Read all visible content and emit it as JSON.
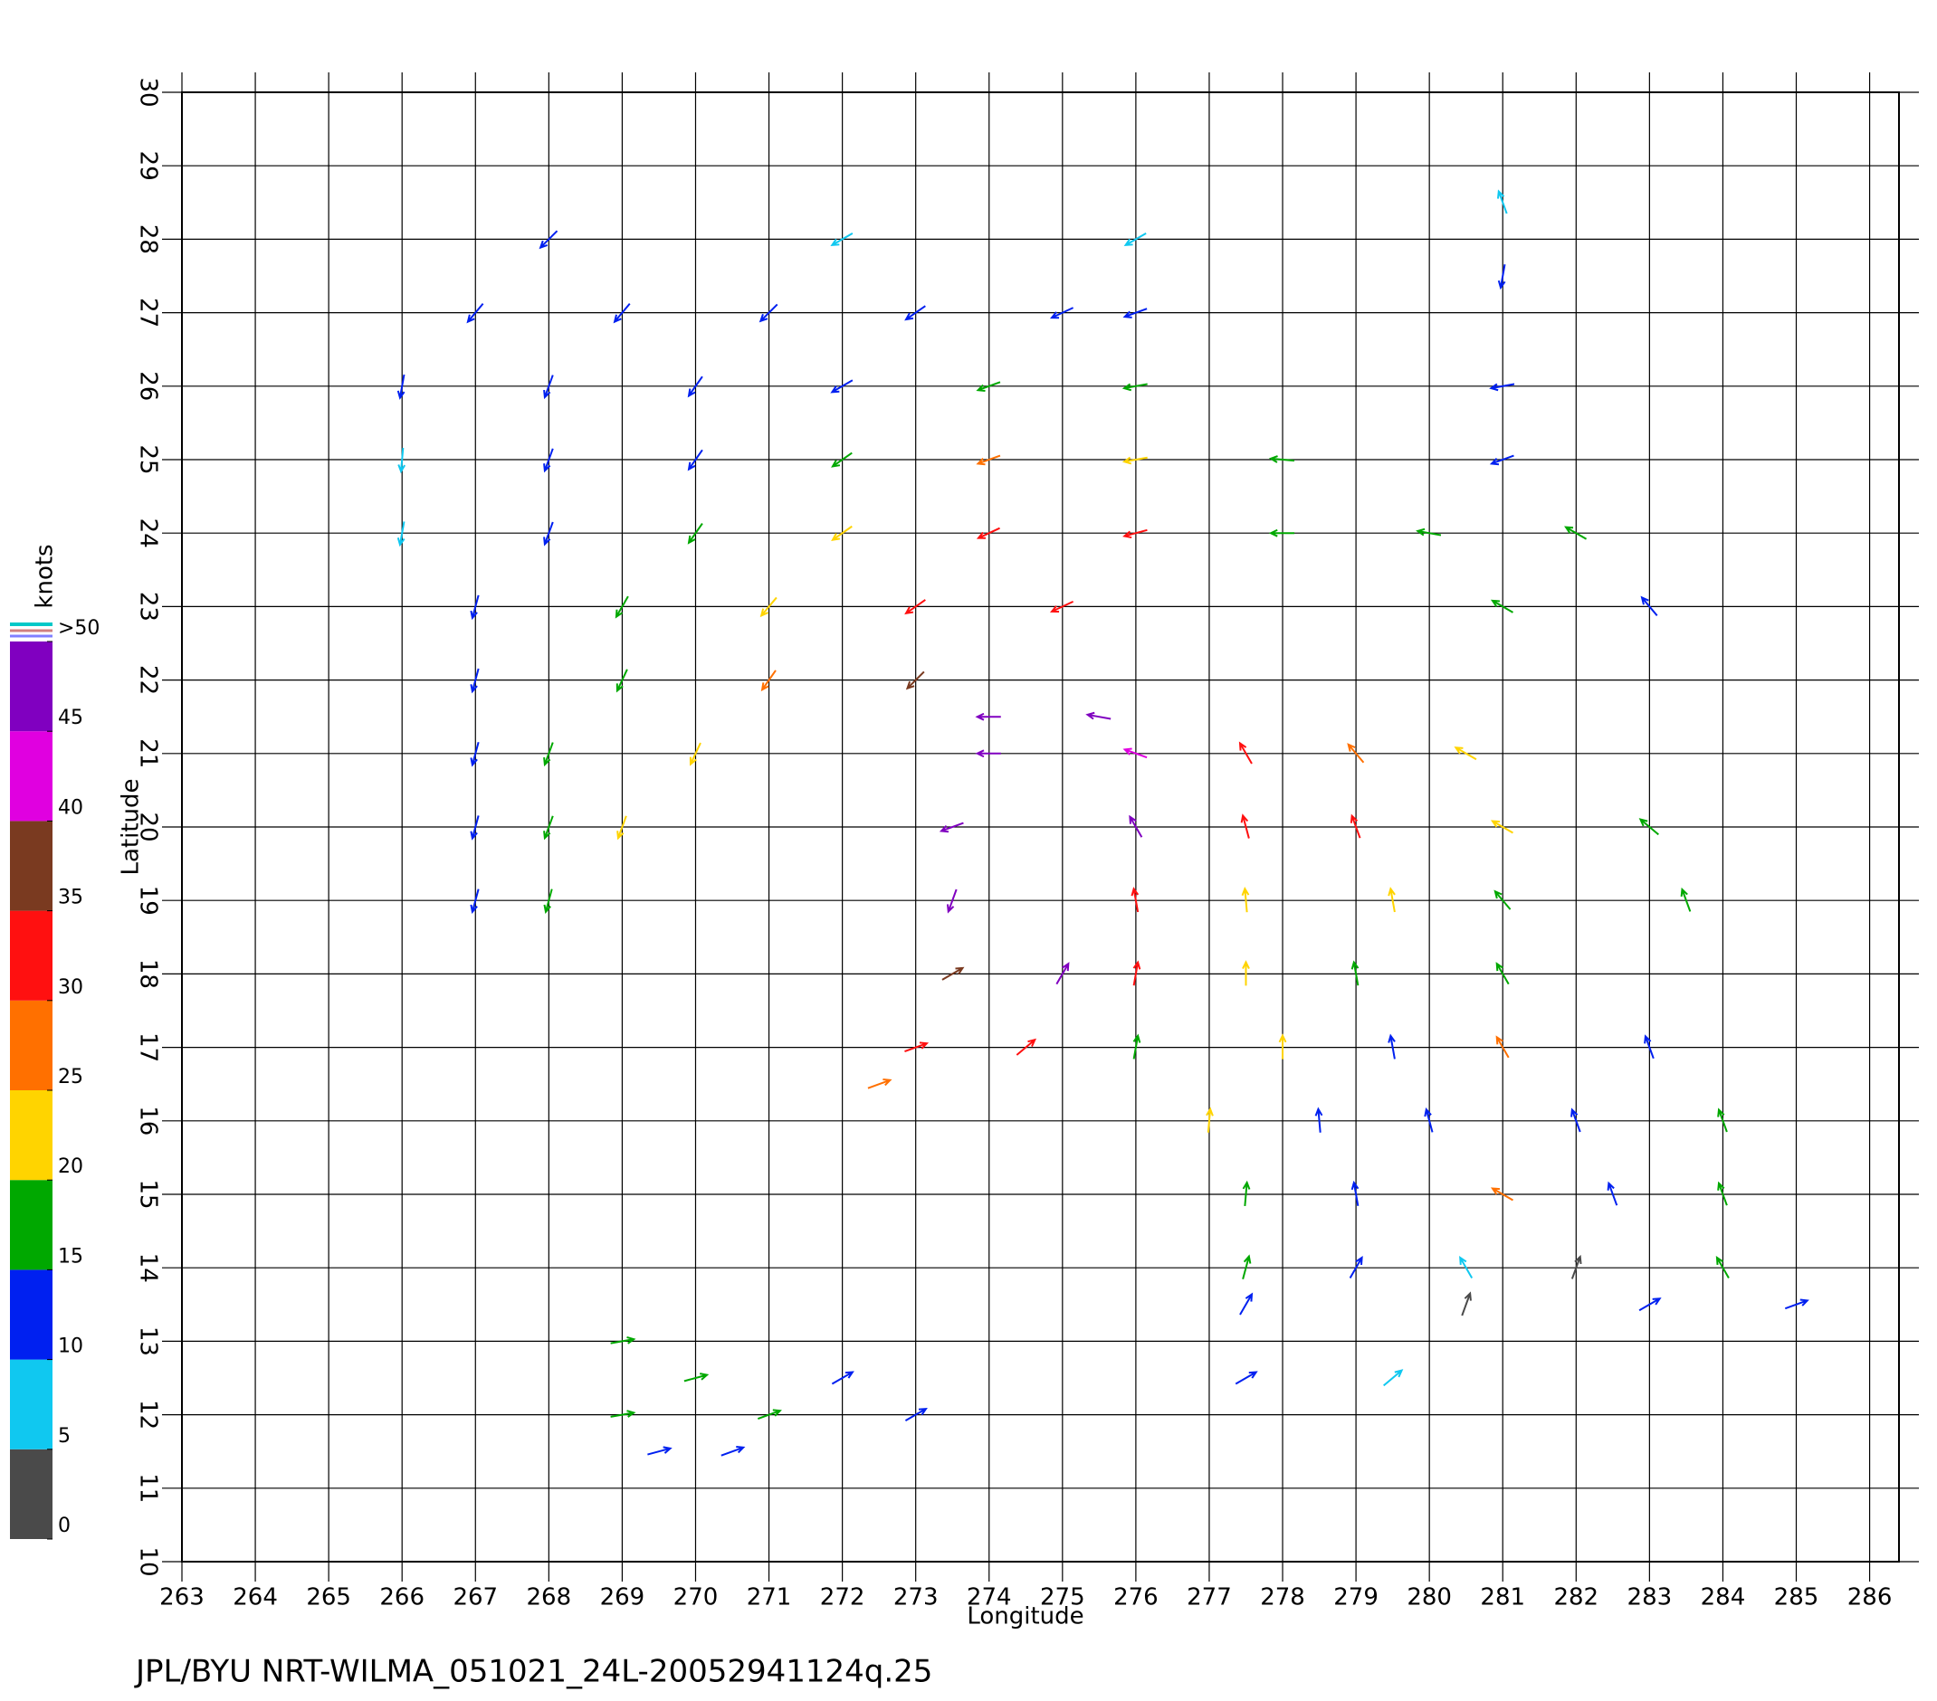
{
  "chart_data": {
    "type": "quiver",
    "xlabel": "Longitude",
    "ylabel": "Latitude",
    "footer": "JPL/BYU  NRT-WILMA_051021_24L-20052941124q.25",
    "xlim": [
      263,
      286.4
    ],
    "ylim": [
      10,
      30
    ],
    "xticks": [
      263,
      264,
      265,
      266,
      267,
      268,
      269,
      270,
      271,
      272,
      273,
      274,
      275,
      276,
      277,
      278,
      279,
      280,
      281,
      282,
      283,
      284,
      285,
      286
    ],
    "yticks": [
      10,
      11,
      12,
      13,
      14,
      15,
      16,
      17,
      18,
      19,
      20,
      21,
      22,
      23,
      24,
      25,
      26,
      27,
      28,
      29,
      30
    ],
    "grid": true,
    "colorbar": {
      "label": "knots",
      "lim": [
        0,
        50
      ],
      "ticks": [
        0,
        5,
        10,
        15,
        20,
        25,
        30,
        35,
        40,
        45,
        {
          "value": 50,
          "label": ">50"
        }
      ],
      "colors": [
        "#4a4a4a",
        "#10c8f0",
        "#0020f0",
        "#00a800",
        "#ffd400",
        "#ff7000",
        "#ff1010",
        "#7a3a20",
        "#e000e0",
        "#8000c0"
      ]
    },
    "vectors": {
      "lon": [
        267,
        269,
        271,
        273,
        275,
        276,
        266,
        268,
        270,
        272,
        274,
        276,
        266,
        268,
        270,
        272,
        274,
        276,
        278,
        266,
        268,
        270,
        272,
        274,
        276,
        278,
        280,
        282,
        267,
        269,
        271,
        273,
        275,
        281,
        283,
        267,
        269,
        271,
        273,
        267,
        268,
        270,
        267,
        268,
        269,
        267,
        268,
        268,
        272,
        276,
        281,
        281,
        281,
        281,
        274,
        275.5,
        274,
        276,
        277.5,
        279,
        280.5,
        273.5,
        276,
        277.5,
        279,
        281,
        283,
        273.5,
        276,
        277.5,
        279.5,
        281,
        283.5,
        273.5,
        275,
        276,
        277.5,
        279,
        281,
        273,
        274.5,
        276,
        278,
        279.5,
        281,
        283,
        272.5,
        277,
        278.5,
        280,
        282,
        284,
        277.5,
        279,
        281,
        282.5,
        284,
        277.5,
        279,
        280.5,
        282,
        284,
        277.5,
        280.5,
        283,
        285,
        277.5,
        279.5,
        269,
        270,
        271,
        272,
        269.5,
        270.5,
        273,
        269
      ],
      "lat": [
        27,
        27,
        27,
        27,
        27,
        27,
        26,
        26,
        26,
        26,
        26,
        26,
        25,
        25,
        25,
        25,
        25,
        25,
        25,
        24,
        24,
        24,
        24,
        24,
        24,
        24,
        24,
        24,
        23,
        23,
        23,
        23,
        23,
        23,
        23,
        22,
        22,
        22,
        22,
        21,
        21,
        21,
        20,
        20,
        20,
        19,
        19,
        28,
        28,
        28,
        28.5,
        27.5,
        26,
        25,
        21.5,
        21.5,
        21,
        21,
        21,
        21,
        21,
        20,
        20,
        20,
        20,
        20,
        20,
        19,
        19,
        19,
        19,
        19,
        19,
        18,
        18,
        18,
        18,
        18,
        18,
        17,
        17,
        17,
        17,
        17,
        17,
        17,
        16.5,
        16,
        16,
        16,
        16,
        16,
        15,
        15,
        15,
        15,
        15,
        14,
        14,
        14,
        14,
        14,
        13.5,
        13.5,
        13.5,
        13.5,
        12.5,
        12.5,
        13,
        12.5,
        12,
        12.5,
        11.5,
        11.5,
        12,
        12
      ],
      "speed": [
        12,
        12,
        13,
        12,
        12,
        11,
        12,
        12,
        13,
        13,
        17,
        18,
        8,
        12,
        13,
        16,
        27,
        23,
        17,
        9,
        13,
        16,
        22,
        31,
        30,
        18,
        16,
        17,
        12,
        16,
        22,
        32,
        33,
        17,
        13,
        13,
        17,
        27,
        37,
        12,
        17,
        21,
        13,
        18,
        22,
        12,
        17,
        12,
        8,
        9,
        9,
        12,
        11,
        12,
        47,
        45,
        48,
        42,
        33,
        28,
        22,
        48,
        46,
        34,
        32,
        23,
        18,
        48,
        34,
        23,
        22,
        17,
        18,
        37,
        46,
        32,
        22,
        17,
        18,
        32,
        31,
        18,
        21,
        13,
        27,
        12,
        27,
        22,
        12,
        13,
        13,
        16,
        17,
        12,
        27,
        11,
        17,
        16,
        12,
        8,
        4,
        16,
        11,
        4,
        12,
        12,
        11,
        8,
        17,
        16,
        16,
        13,
        13,
        12,
        12,
        17
      ],
      "direction": [
        220,
        220,
        225,
        235,
        245,
        250,
        190,
        200,
        215,
        240,
        250,
        260,
        185,
        200,
        215,
        235,
        250,
        260,
        275,
        190,
        200,
        215,
        235,
        245,
        255,
        270,
        280,
        300,
        195,
        210,
        220,
        235,
        245,
        300,
        320,
        195,
        205,
        215,
        225,
        195,
        200,
        205,
        195,
        200,
        200,
        195,
        195,
        225,
        240,
        240,
        340,
        190,
        260,
        250,
        270,
        280,
        270,
        290,
        330,
        320,
        300,
        250,
        330,
        345,
        340,
        300,
        310,
        200,
        350,
        355,
        350,
        320,
        340,
        60,
        30,
        10,
        0,
        350,
        330,
        70,
        50,
        10,
        0,
        350,
        330,
        340,
        70,
        5,
        355,
        345,
        340,
        340,
        5,
        350,
        300,
        340,
        340,
        15,
        30,
        330,
        20,
        330,
        30,
        20,
        60,
        70,
        60,
        50,
        80,
        75,
        70,
        60,
        75,
        70,
        60,
        80
      ]
    }
  }
}
